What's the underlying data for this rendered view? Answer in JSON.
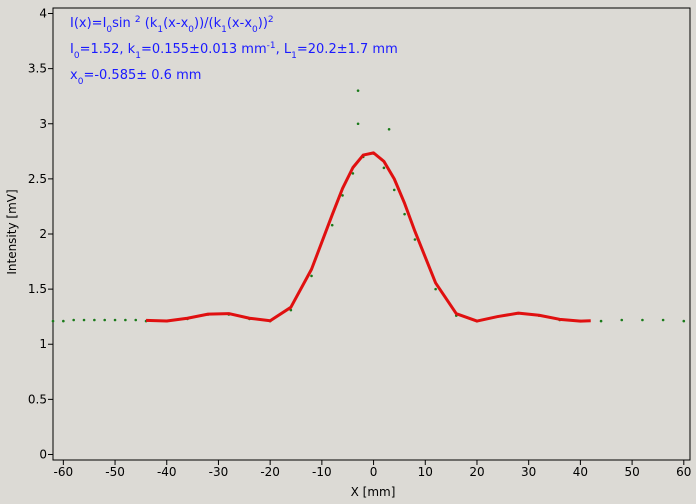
{
  "chart_data": {
    "type": "scatter",
    "xlabel": "X [mm]",
    "ylabel": "Intensity [mV]",
    "xlim": [
      -62,
      61.2
    ],
    "ylim": [
      -0.05,
      4.05
    ],
    "xticks": [
      -60,
      -50,
      -40,
      -30,
      -20,
      -10,
      0,
      10,
      20,
      30,
      40,
      50,
      60
    ],
    "yticks": [
      0,
      0.5,
      1,
      1.5,
      2,
      2.5,
      3,
      3.5,
      4
    ],
    "annotations": [
      [
        "I(x)=I",
        "0",
        "sin ",
        "2",
        " (k",
        "1",
        "(x-x",
        "0",
        "))/(k",
        "1",
        "(x-x",
        "0",
        "))",
        "2"
      ],
      [
        "I",
        "0",
        "=1.52,  k",
        "1",
        "=0.155±0.013 mm",
        "-1",
        ",   L",
        "1",
        "=20.2±1.7 mm"
      ],
      [
        "x",
        "0",
        "=-0.585±   0.6 mm"
      ]
    ],
    "series": [
      {
        "color": "#1a7a1a",
        "x": [
          -62,
          -60,
          -58,
          -56,
          -54,
          -52,
          -50,
          -48,
          -46,
          -44,
          -40,
          -36,
          -32,
          -28,
          -24,
          -20,
          -16,
          -12,
          -8,
          -6,
          -4,
          -3,
          -3,
          -2,
          0,
          2,
          3,
          4,
          6,
          8,
          12,
          16,
          20,
          24,
          28,
          32,
          36,
          40,
          44,
          48,
          52,
          56,
          60
        ],
        "values": [
          1.21,
          1.21,
          1.22,
          1.22,
          1.22,
          1.22,
          1.22,
          1.22,
          1.22,
          1.21,
          1.21,
          1.23,
          1.27,
          1.27,
          1.23,
          1.21,
          1.31,
          1.62,
          2.08,
          2.35,
          2.55,
          3.3,
          3.0,
          2.7,
          2.73,
          2.6,
          2.95,
          2.4,
          2.18,
          1.95,
          1.5,
          1.26,
          1.21,
          1.25,
          1.28,
          1.26,
          1.22,
          1.21,
          1.21,
          1.22,
          1.22,
          1.22,
          1.21
        ]
      },
      {
        "color": "#e01010",
        "x": [
          -44,
          -40,
          -36,
          -32,
          -28,
          -24,
          -20,
          -16,
          -12,
          -8,
          -6,
          -4,
          -2,
          0,
          2,
          4,
          6,
          8,
          12,
          16,
          20,
          24,
          28,
          32,
          36,
          40,
          42
        ],
        "values": [
          1.216,
          1.211,
          1.236,
          1.273,
          1.278,
          1.236,
          1.213,
          1.335,
          1.68,
          2.174,
          2.413,
          2.602,
          2.716,
          2.736,
          2.659,
          2.5,
          2.278,
          2.024,
          1.556,
          1.277,
          1.21,
          1.251,
          1.282,
          1.263,
          1.226,
          1.21,
          1.213
        ]
      }
    ]
  }
}
